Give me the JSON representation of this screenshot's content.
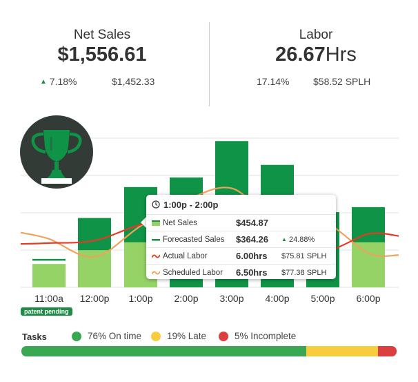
{
  "net_sales": {
    "title": "Net Sales",
    "value": "$1,556.61",
    "change": "7.18%",
    "change_icon": "up-triangle-icon",
    "comparison": "$1,452.33"
  },
  "labor": {
    "title": "Labor",
    "value_number": "26.67",
    "value_unit": "Hrs",
    "percent": "17.14%",
    "splh": "$58.52 SPLH"
  },
  "trophy_icon": "trophy-icon",
  "patent_label": "patent pending",
  "colors": {
    "actual_bar": "#96d367",
    "forecast_bar": "#0f9447",
    "actual_labor": "#e33a24",
    "scheduled_labor": "#f0a15b",
    "green_status": "#3aa853",
    "yellow_status": "#f5cd3e",
    "red_status": "#db4040"
  },
  "chart_data": {
    "type": "bar",
    "categories": [
      "11:00a",
      "12:00p",
      "1:00p",
      "2:00p",
      "3:00p",
      "4:00p",
      "5:00p",
      "6:00p"
    ],
    "series": [
      {
        "name": "Net Sales",
        "values": [
          56,
          89,
          108,
          0,
          0,
          0,
          0,
          108
        ]
      },
      {
        "name": "Forecasted Sales",
        "values": [
          68,
          166,
          240,
          263,
          350,
          293,
          180,
          192
        ]
      },
      {
        "name": "Actual Labor",
        "values": [
          106,
          112,
          150,
          170,
          172,
          158,
          90,
          128
        ]
      },
      {
        "name": "Scheduled Labor",
        "values": [
          116,
          73,
          147,
          208,
          237,
          154,
          158,
          82
        ]
      }
    ],
    "ylim": [
      0,
      400
    ],
    "grid": true
  },
  "tooltip": {
    "time": "1:00p - 2:00p",
    "clock_icon": "clock-icon",
    "rows": [
      {
        "label": "Net Sales",
        "value": "$454.87",
        "extra": ""
      },
      {
        "label": "Forecasted Sales",
        "value": "$364.26",
        "extra": "24.88%"
      },
      {
        "label": "Actual Labor",
        "value": "6.00hrs",
        "extra": "$75.81 SPLH"
      },
      {
        "label": "Scheduled Labor",
        "value": "6.50hrs",
        "extra": "$77.38 SPLH"
      }
    ]
  },
  "tasks": {
    "label": "Tasks",
    "items": [
      {
        "label": "76% On time",
        "percent": 76,
        "color": "#3aa853"
      },
      {
        "label": "19% Late",
        "percent": 19,
        "color": "#f5cd3e"
      },
      {
        "label": "5% Incomplete",
        "percent": 5,
        "color": "#db4040"
      }
    ]
  }
}
